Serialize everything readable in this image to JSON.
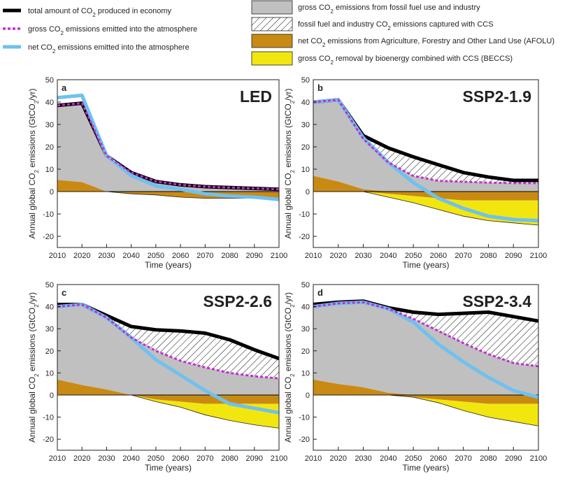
{
  "colors": {
    "total": "#000000",
    "gross_emitted": "#c22fd1",
    "net_emitted": "#6ec1f0",
    "fossil_fill": "#c0c0c0",
    "ccs_hatch": "#231f20",
    "afolu_fill": "#c98a14",
    "beccs_fill": "#f2e60f",
    "zero_line": "#000000"
  },
  "legend": {
    "left": [
      {
        "key": "total",
        "label_pre": "total amount of CO",
        "sub": "2",
        "label_post": " produced in economy"
      },
      {
        "key": "gross",
        "label_pre": "gross CO",
        "sub": "2",
        "label_post": " emissions emitted into the atmosphere"
      },
      {
        "key": "net",
        "label_pre": "net CO",
        "sub": "2",
        "label_post": " emissions emitted into the atmosphere"
      }
    ],
    "right": [
      {
        "key": "fossil",
        "label_pre": "gross CO",
        "sub": "2",
        "label_post": " emissions from fossil fuel use and industry"
      },
      {
        "key": "ccs",
        "label_pre": "fossil fuel and industry CO",
        "sub": "2",
        "label_post": " emissions captured with CCS"
      },
      {
        "key": "afolu",
        "label_pre": "net CO",
        "sub": "2",
        "label_post": " emissions from Agriculture, Forestry and Other Land Use (AFOLU)"
      },
      {
        "key": "beccs",
        "label_pre": "gross CO",
        "sub": "2",
        "label_post": " removal by bioenergy combined with CCS (BECCS)"
      }
    ]
  },
  "axes": {
    "ylabel_pre": "Annual global CO",
    "ylabel_sub": "2",
    "ylabel_mid": " emissions (GtCO",
    "ylabel_sub2": "2",
    "ylabel_post": "/yr)",
    "xlabel": "Time (years)",
    "xticks": [
      2010,
      2020,
      2030,
      2040,
      2050,
      2060,
      2070,
      2080,
      2090,
      2100
    ],
    "yticks": [
      50,
      40,
      30,
      20,
      10,
      0,
      -10,
      -20
    ],
    "ylim": [
      -25,
      50
    ],
    "xlim": [
      2010,
      2100
    ]
  },
  "chart_data": [
    {
      "type": "area",
      "letter": "a",
      "title": "LED",
      "x": [
        2010,
        2020,
        2030,
        2040,
        2050,
        2060,
        2070,
        2080,
        2090,
        2100
      ],
      "total": [
        38.5,
        39.5,
        16,
        8.5,
        4.5,
        3,
        2.2,
        1.8,
        1.4,
        1
      ],
      "gross_emitted": [
        38.5,
        39.5,
        16,
        8.5,
        4.5,
        3,
        2.2,
        1.8,
        1.4,
        1
      ],
      "net_emitted": [
        42,
        43,
        16,
        7.2,
        2.5,
        1,
        -1,
        -2,
        -2.5,
        -3.5
      ],
      "afolu": [
        5.2,
        4.2,
        0,
        -1,
        -1.5,
        -2.5,
        -3,
        -3,
        -3,
        -3
      ],
      "beccs": [
        0,
        0,
        0,
        0,
        0,
        0,
        0,
        0,
        0,
        0
      ]
    },
    {
      "type": "area",
      "letter": "b",
      "title": "SSP2-1.9",
      "x": [
        2010,
        2020,
        2030,
        2040,
        2050,
        2060,
        2070,
        2080,
        2090,
        2100
      ],
      "total": [
        40,
        41,
        25,
        19.5,
        15.5,
        12,
        8.5,
        6.5,
        5,
        5
      ],
      "gross_emitted": [
        40,
        41,
        23.5,
        13,
        7,
        4.8,
        4.4,
        4,
        3.8,
        3.8
      ],
      "net_emitted": [
        40,
        41,
        24,
        13,
        4,
        -3,
        -7.5,
        -11,
        -12.5,
        -13
      ],
      "afolu": [
        7,
        4.5,
        1,
        -1,
        -2,
        -3,
        -4,
        -4,
        -4,
        -4
      ],
      "beccs": [
        0,
        0,
        0,
        -1.5,
        -3,
        -5,
        -7,
        -9,
        -10,
        -11
      ]
    },
    {
      "type": "area",
      "letter": "c",
      "title": "SSP2-2.6",
      "x": [
        2010,
        2020,
        2030,
        2040,
        2050,
        2060,
        2070,
        2080,
        2090,
        2100
      ],
      "total": [
        41,
        41,
        36,
        31,
        29.5,
        29,
        28,
        25,
        20.5,
        16.5
      ],
      "gross_emitted": [
        40,
        41,
        35,
        26,
        20,
        15.5,
        12.5,
        10,
        8.5,
        7.5
      ],
      "net_emitted": [
        40,
        41,
        35,
        26,
        16,
        9,
        2,
        -4,
        -6,
        -8
      ],
      "afolu": [
        7,
        4.5,
        2.5,
        0,
        -2,
        -3,
        -4,
        -4,
        -4,
        -4
      ],
      "beccs": [
        0,
        0,
        0,
        0,
        -1,
        -2.5,
        -5,
        -7.5,
        -9.5,
        -11
      ]
    },
    {
      "type": "area",
      "letter": "d",
      "title": "SSP2-3.4",
      "x": [
        2010,
        2020,
        2030,
        2040,
        2050,
        2060,
        2070,
        2080,
        2090,
        2100
      ],
      "total": [
        41,
        42,
        42.5,
        39.5,
        37.5,
        36.5,
        37,
        37.5,
        35.5,
        33.5
      ],
      "gross_emitted": [
        40,
        41.5,
        42,
        39,
        34.5,
        29,
        23.5,
        18.5,
        14.5,
        13
      ],
      "net_emitted": [
        40,
        41.5,
        42,
        39,
        33,
        23,
        15,
        8,
        2,
        -1
      ],
      "afolu": [
        7,
        5,
        3.5,
        1,
        -1,
        -2,
        -3,
        -4,
        -4,
        -4
      ],
      "beccs": [
        0,
        0,
        0,
        0,
        0,
        -1.5,
        -4,
        -6,
        -8,
        -10
      ]
    }
  ]
}
